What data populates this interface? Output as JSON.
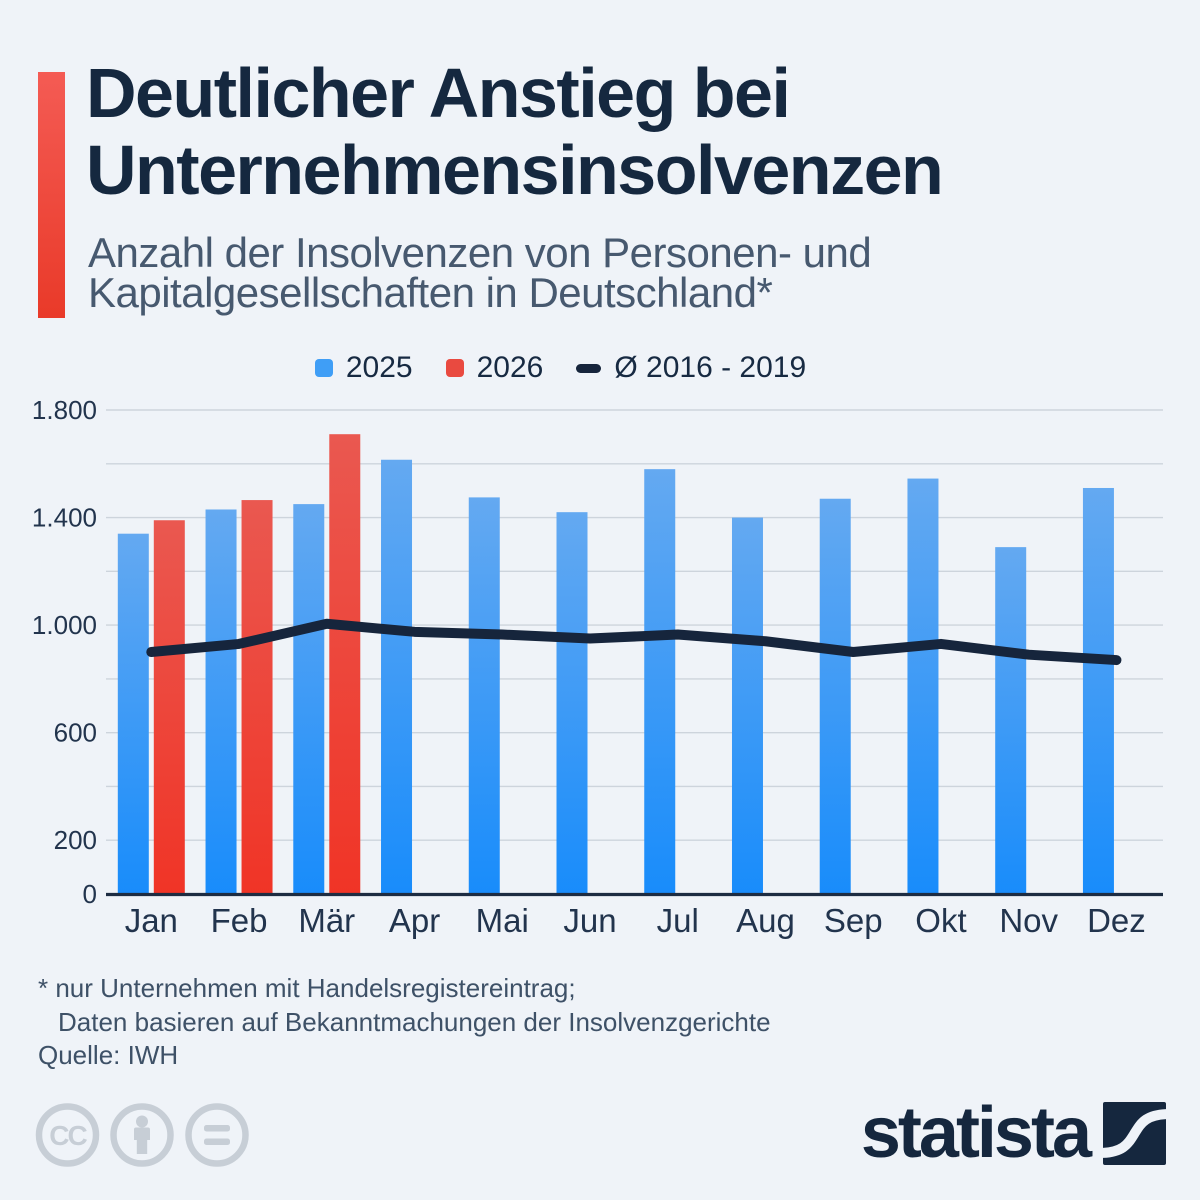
{
  "header": {
    "title_line1": "Deutlicher Anstieg bei",
    "title_line2": "Unternehmensinsolvenzen",
    "subtitle_line1": "Anzahl der Insolvenzen von Personen- und",
    "subtitle_line2": "Kapitalgesellschaften in Deutschland*"
  },
  "legend": {
    "items": [
      {
        "label": "2025",
        "swatch": "square",
        "color": "#3f9ef6"
      },
      {
        "label": "2026",
        "swatch": "square",
        "color": "#e94a40"
      },
      {
        "label": "Ø 2016 - 2019",
        "swatch": "dash",
        "color": "#16253c"
      }
    ]
  },
  "chart_data": {
    "type": "bar",
    "title": "Anzahl der Insolvenzen von Personen- und Kapitalgesellschaften in Deutschland",
    "categories": [
      "Jan",
      "Feb",
      "Mär",
      "Apr",
      "Mai",
      "Jun",
      "Jul",
      "Aug",
      "Sep",
      "Okt",
      "Nov",
      "Dez"
    ],
    "series": [
      {
        "name": "2025",
        "type": "bar",
        "gradient": [
          "#64a9f1",
          "#188cfb"
        ],
        "values": [
          1340,
          1430,
          1450,
          1615,
          1475,
          1420,
          1580,
          1400,
          1470,
          1545,
          1290,
          1510
        ]
      },
      {
        "name": "2026",
        "type": "bar",
        "gradient": [
          "#ea5850",
          "#f03426"
        ],
        "values": [
          1390,
          1465,
          1710,
          null,
          null,
          null,
          null,
          null,
          null,
          null,
          null,
          null
        ]
      },
      {
        "name": "Ø 2016 - 2019",
        "type": "line",
        "color": "#16253c",
        "values": [
          900,
          930,
          1005,
          975,
          965,
          950,
          965,
          940,
          900,
          930,
          890,
          870
        ]
      }
    ],
    "xlabel": "",
    "ylabel": "",
    "ylim": [
      0,
      1800
    ],
    "ytick_values": [
      0,
      200,
      600,
      1000,
      1400,
      1800
    ],
    "ytick_labels": [
      "0",
      "200",
      "600",
      "1.000",
      "1.400",
      "1.800"
    ],
    "gridline_step": 200,
    "grid": true,
    "legend_position": "top"
  },
  "footnote": {
    "line1": "* nur Unternehmen mit Handelsregistereintrag;",
    "line2": "Daten basieren auf Bekanntmachungen der Insolvenzgerichte",
    "source": "Quelle: IWH"
  },
  "branding": {
    "wordmark": "statista"
  },
  "colors": {
    "background": "#eff3f8",
    "accent_top": "#f45b54",
    "accent_bottom": "#e93a29",
    "title": "#15283f",
    "subtitle": "#47596f",
    "grid": "#cdd4dc",
    "axis": "#1d2c42",
    "tick_label": "#22344d",
    "footnote": "#3e5167",
    "cc_icons": "#c7ced6",
    "logo": "#15273e"
  }
}
